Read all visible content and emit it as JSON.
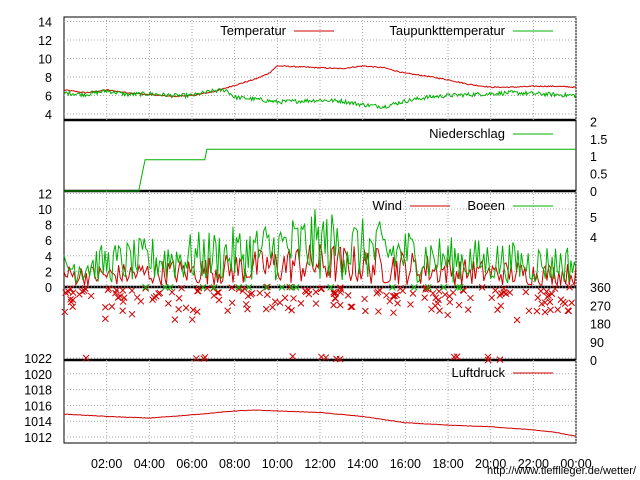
{
  "source_url": "http://www.tiefflieger.de/wetter/",
  "x_tick_labels": [
    "02:00",
    "04:00",
    "06:00",
    "08:00",
    "10:00",
    "12:00",
    "14:00",
    "16:00",
    "18:00",
    "20:00",
    "22:00",
    "00:00"
  ],
  "colors": {
    "red": "#d00000",
    "green": "#00b000",
    "grid": "#a8a8a8"
  },
  "chart_data": [
    {
      "type": "line",
      "x_range_hours": [
        0,
        24
      ],
      "ylim": [
        4,
        14
      ],
      "yticks": [
        4,
        6,
        8,
        10,
        12,
        14
      ],
      "grid": true,
      "legend_position": "top-right",
      "series": [
        {
          "name": "Temperatur",
          "color": "red",
          "points": [
            [
              0,
              6.6
            ],
            [
              1,
              6.3
            ],
            [
              2,
              6.6
            ],
            [
              3,
              6.3
            ],
            [
              4,
              6.1
            ],
            [
              5,
              5.9
            ],
            [
              6,
              6.0
            ],
            [
              7,
              6.4
            ],
            [
              8,
              7.1
            ],
            [
              9,
              7.8
            ],
            [
              9.6,
              8.4
            ],
            [
              10,
              9.2
            ],
            [
              11,
              9.1
            ],
            [
              12,
              9.0
            ],
            [
              13,
              8.9
            ],
            [
              14,
              9.2
            ],
            [
              15,
              9.0
            ],
            [
              16,
              8.4
            ],
            [
              17,
              8.1
            ],
            [
              18,
              7.7
            ],
            [
              19,
              7.2
            ],
            [
              20,
              6.9
            ],
            [
              21,
              6.9
            ],
            [
              22,
              7.0
            ],
            [
              23,
              7.0
            ],
            [
              24,
              6.9
            ]
          ]
        },
        {
          "name": "Taupunkttemperatur",
          "color": "green",
          "points": [
            [
              0,
              6.3
            ],
            [
              1,
              6.1
            ],
            [
              2,
              6.5
            ],
            [
              3,
              6.1
            ],
            [
              4,
              6.2
            ],
            [
              5,
              6.0
            ],
            [
              6,
              6.0
            ],
            [
              7,
              6.5
            ],
            [
              7.6,
              6.6
            ],
            [
              8,
              5.8
            ],
            [
              9,
              5.6
            ],
            [
              10,
              5.3
            ],
            [
              11,
              5.4
            ],
            [
              12,
              5.5
            ],
            [
              13,
              5.4
            ],
            [
              14,
              5.0
            ],
            [
              15,
              4.8
            ],
            [
              16,
              5.4
            ],
            [
              17,
              5.8
            ],
            [
              18,
              6.0
            ],
            [
              19,
              6.1
            ],
            [
              20,
              6.2
            ],
            [
              21,
              6.3
            ],
            [
              22,
              6.2
            ],
            [
              23,
              6.1
            ],
            [
              24,
              6.0
            ]
          ]
        }
      ]
    },
    {
      "type": "line",
      "x_range_hours": [
        0,
        24
      ],
      "ylim": [
        0,
        2
      ],
      "yticks": [
        "0",
        "0.5",
        "1",
        "1.5",
        "2"
      ],
      "y_axis_side": "right",
      "grid": false,
      "legend_position": "top-right",
      "series": [
        {
          "name": "Niederschlag",
          "color": "green",
          "points": [
            [
              0,
              0
            ],
            [
              3.5,
              0
            ],
            [
              3.7,
              0.6
            ],
            [
              3.8,
              0.9
            ],
            [
              6.6,
              0.9
            ],
            [
              6.7,
              1.2
            ],
            [
              24,
              1.2
            ]
          ]
        }
      ]
    },
    {
      "type": "line",
      "x_range_hours": [
        0,
        24
      ],
      "ylim": [
        0,
        12
      ],
      "yticks": [
        0,
        2,
        4,
        6,
        8,
        10,
        12
      ],
      "secondary_yticks": [
        "4",
        "5"
      ],
      "grid": true,
      "legend_position": "top-right",
      "series": [
        {
          "name": "Wind",
          "color": "red",
          "points": [
            [
              0,
              1.5
            ],
            [
              2,
              1.5
            ],
            [
              4,
              1.8
            ],
            [
              6,
              2.0
            ],
            [
              8,
              2.3
            ],
            [
              10,
              2.8
            ],
            [
              12,
              3.0
            ],
            [
              14,
              2.8
            ],
            [
              16,
              2.5
            ],
            [
              18,
              2.0
            ],
            [
              20,
              1.8
            ],
            [
              22,
              1.7
            ],
            [
              24,
              1.6
            ]
          ]
        },
        {
          "name": "Boeen",
          "color": "green",
          "points": [
            [
              0,
              2.5
            ],
            [
              2,
              3.0
            ],
            [
              4,
              3.5
            ],
            [
              6,
              3.8
            ],
            [
              8,
              4.2
            ],
            [
              10,
              4.8
            ],
            [
              12,
              5.5
            ],
            [
              14,
              4.8
            ],
            [
              16,
              4.2
            ],
            [
              18,
              3.5
            ],
            [
              20,
              3.3
            ],
            [
              22,
              3.0
            ],
            [
              24,
              3.0
            ]
          ]
        }
      ]
    },
    {
      "type": "scatter",
      "x_range_hours": [
        0,
        24
      ],
      "ylim": [
        0,
        360
      ],
      "yticks": [
        "0",
        "90",
        "180",
        "270",
        "360"
      ],
      "y_axis_side": "right",
      "grid": false,
      "marker": "x",
      "description": "wind direction",
      "color": "red"
    },
    {
      "type": "line",
      "x_range_hours": [
        0,
        24
      ],
      "ylim": [
        1011,
        1022
      ],
      "yticks": [
        1012,
        1014,
        1016,
        1018,
        1020,
        1022
      ],
      "grid": true,
      "legend_position": "top-right",
      "series": [
        {
          "name": "Luftdruck",
          "color": "red",
          "points": [
            [
              0,
              1014.9
            ],
            [
              2,
              1014.6
            ],
            [
              4,
              1014.4
            ],
            [
              6,
              1014.8
            ],
            [
              8,
              1015.3
            ],
            [
              9,
              1015.4
            ],
            [
              10,
              1015.3
            ],
            [
              12,
              1015.1
            ],
            [
              14,
              1014.6
            ],
            [
              16,
              1013.8
            ],
            [
              18,
              1013.5
            ],
            [
              20,
              1013.3
            ],
            [
              22,
              1012.9
            ],
            [
              23,
              1012.6
            ],
            [
              24,
              1012.1
            ]
          ]
        }
      ]
    }
  ]
}
